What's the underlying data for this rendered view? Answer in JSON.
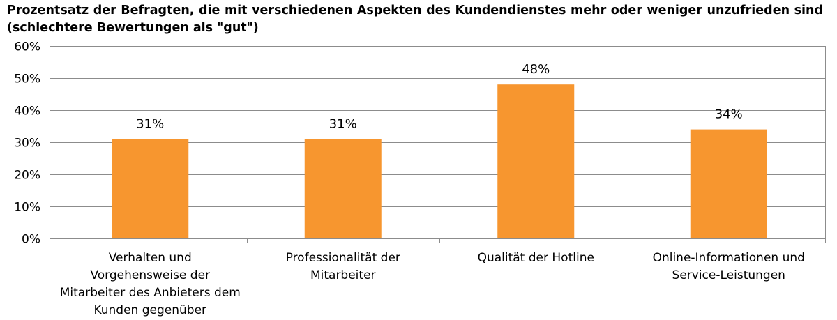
{
  "chart_data": {
    "type": "bar",
    "title": "Prozentsatz der Befragten, die mit verschiedenen Aspekten des Kundendienstes mehr oder weniger unzufrieden sind (schlechtere Bewertungen als \"gut\")",
    "categories": [
      "Verhalten und Vorgehensweise der Mitarbeiter des Anbieters dem Kunden gegenüber",
      "Professionalität der Mitarbeiter",
      "Qualität der Hotline",
      "Online-Informationen und Service-Leistungen"
    ],
    "category_lines": [
      [
        "Verhalten und",
        "Vorgehensweise der",
        "Mitarbeiter des Anbieters dem",
        "Kunden gegenüber"
      ],
      [
        "Professionalität der",
        "Mitarbeiter"
      ],
      [
        "Qualität der Hotline"
      ],
      [
        "Online-Informationen und",
        "Service-Leistungen"
      ]
    ],
    "values": [
      31,
      31,
      48,
      34
    ],
    "data_labels": [
      "31%",
      "31%",
      "48%",
      "34%"
    ],
    "ylim": [
      0,
      60
    ],
    "yticks": [
      0,
      10,
      20,
      30,
      40,
      50,
      60
    ],
    "ytick_labels": [
      "0%",
      "10%",
      "20%",
      "30%",
      "40%",
      "50%",
      "60%"
    ],
    "xlabel": "",
    "ylabel": "",
    "grid": true,
    "legend": "none",
    "bar_color": "#F7962F",
    "grid_color": "#8C8C8C"
  }
}
